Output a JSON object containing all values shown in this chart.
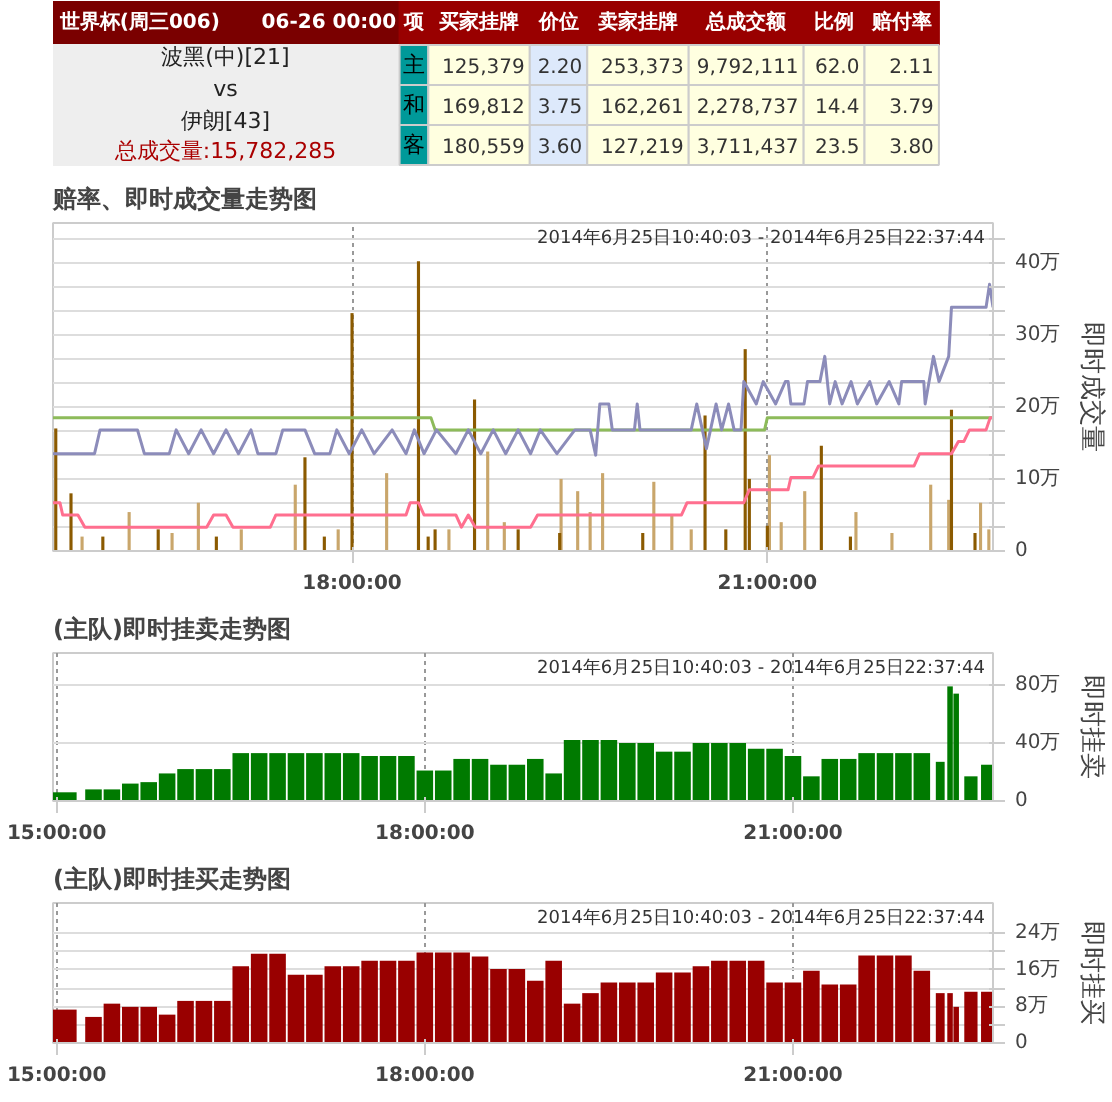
{
  "chart_data": [
    {
      "type": "other",
      "title": "世界杯(周三006)",
      "subtitle": "06-26 00:00",
      "annotations": [
        "波黑(中)[21]",
        "vs",
        "伊朗[43]",
        "总成交量:15,782,285",
        "项",
        "买家挂牌",
        "价位",
        "卖家挂牌",
        "总成交额",
        "比例",
        "赔付率",
        "主",
        "125,379",
        "2.20",
        "253,373",
        "9,792,111",
        "62.0",
        "2.11",
        "和",
        "169,812",
        "3.75",
        "162,261",
        "2,278,737",
        "14.4",
        "3.79",
        "客",
        "180,559",
        "3.60",
        "127,219",
        "3,711,437",
        "23.5",
        "3.80"
      ]
    },
    {
      "type": "bar",
      "title": "赔率、即时成交量走势图",
      "subtitle": "2014年6月25日10:40:03 - 2014年6月25日22:37:44",
      "ylabel": "即时成交量",
      "xlim": [
        15.84,
        22.63
      ],
      "ylim": [
        0,
        45.5
      ],
      "xticks": [
        {
          "value": 18,
          "label": "18:00:00"
        },
        {
          "value": 21,
          "label": "21:00:00"
        }
      ],
      "yticks": [
        0,
        {
          "value": 3.3,
          "label": null
        },
        {
          "value": 6.7,
          "label": null
        },
        {
          "value": 10,
          "label": "10万"
        },
        {
          "value": 13.3,
          "label": null
        },
        {
          "value": 16.7,
          "label": null
        },
        {
          "value": 20,
          "label": "20万"
        },
        {
          "value": 23.3,
          "label": null
        },
        {
          "value": 26.7,
          "label": null
        },
        {
          "value": 30,
          "label": "30万"
        },
        {
          "value": 33.3,
          "label": null
        },
        {
          "value": 36.7,
          "label": null
        },
        {
          "value": 40,
          "label": "40万"
        },
        {
          "value": 43.3,
          "label": null
        }
      ],
      "grid": true,
      "series": [
        {
          "color": "#c9a66b",
          "x": [
            16.05,
            16.39,
            16.7,
            16.89,
            17.2,
            17.59,
            17.9,
            18.25,
            18.7,
            18.98,
            19.1,
            19.51,
            19.63,
            19.72,
            19.81,
            20.18,
            20.31,
            20.45,
            21.015,
            21.1,
            21.27,
            21.64,
            21.9,
            22.18,
            22.31,
            22.54,
            22.6
          ],
          "values": [
            2,
            5.4,
            2.5,
            6.7,
            3,
            9.2,
            3,
            10.8,
            3,
            13.8,
            4,
            10,
            8.3,
            5.4,
            10.8,
            9.6,
            5,
            3,
            13.3,
            4,
            8.3,
            5.4,
            2.5,
            9.2,
            7.1,
            6.7,
            3
          ]
        },
        {
          "color": "#8b5a00",
          "x": [
            15.86,
            15.97,
            16.2,
            16.6,
            17.02,
            17.66,
            17.8,
            18.0,
            18.48,
            18.55,
            18.6,
            18.885,
            19.2,
            19.5,
            20.1,
            20.55,
            20.7,
            20.84,
            20.87,
            21.0,
            21.39,
            21.6,
            22.33,
            22.5
          ],
          "values": [
            17,
            8,
            2,
            3,
            2,
            13,
            2,
            33,
            40.2,
            2,
            3,
            21,
            3,
            2.5,
            2.5,
            18.8,
            3,
            28,
            10,
            3.5,
            14.6,
            2,
            19.6,
            2.5
          ]
        },
        {
          "type": "line",
          "color": "#8dbb5a",
          "x": [
            15.84,
            18.57,
            18.6,
            20.98,
            21.0,
            22.63
          ],
          "values": [
            18.5,
            18.5,
            16.8,
            16.8,
            18.5,
            18.5
          ]
        },
        {
          "type": "line",
          "color": "#8c8cba",
          "x": [
            15.84,
            16.14,
            16.18,
            16.45,
            16.5,
            16.68,
            16.73,
            16.82,
            16.91,
            17.0,
            17.09,
            17.18,
            17.27,
            17.32,
            17.45,
            17.5,
            17.66,
            17.73,
            17.84,
            17.89,
            17.98,
            18.07,
            18.16,
            18.29,
            18.39,
            18.45,
            18.52,
            18.61,
            18.75,
            18.84,
            18.93,
            19.02,
            19.11,
            19.2,
            19.29,
            19.36,
            19.48,
            19.61,
            19.72,
            19.76,
            19.79,
            19.855,
            19.88,
            20.04,
            20.06,
            20.08,
            20.45,
            20.49,
            20.56,
            20.63,
            20.67,
            20.72,
            20.76,
            20.81,
            20.83,
            20.92,
            20.97,
            21.06,
            21.13,
            21.15,
            21.17,
            21.265,
            21.29,
            21.38,
            21.415,
            21.45,
            21.49,
            21.54,
            21.605,
            21.65,
            21.74,
            21.79,
            21.88,
            21.95,
            21.97,
            22.13,
            22.14,
            22.2,
            22.24,
            22.31,
            22.33,
            22.58,
            22.605,
            22.63
          ],
          "values": [
            13.5,
            13.5,
            16.8,
            16.8,
            13.5,
            13.5,
            16.8,
            13.5,
            16.8,
            13.5,
            16.8,
            13.5,
            16.8,
            13.5,
            13.5,
            16.8,
            16.8,
            13.5,
            13.5,
            16.8,
            13.5,
            16.8,
            13.5,
            16.8,
            13.5,
            16.8,
            13.5,
            16.8,
            13.5,
            16.8,
            13.5,
            16.8,
            13.5,
            16.8,
            13.5,
            16.8,
            13.5,
            16.8,
            16.8,
            13.3,
            20.4,
            20.4,
            16.8,
            16.8,
            20.4,
            16.8,
            16.8,
            20.4,
            14.2,
            20.4,
            16.8,
            20.4,
            16.8,
            16.8,
            23.5,
            20.4,
            23.5,
            20.4,
            23.5,
            23.5,
            20.4,
            20.4,
            23.5,
            23.5,
            27,
            20.4,
            23.5,
            20.4,
            23.5,
            20.4,
            23.5,
            20.4,
            23.5,
            20.4,
            23.5,
            23.5,
            20.4,
            27,
            23.5,
            27,
            33.8,
            33.8,
            37,
            33.8
          ]
        },
        {
          "type": "line",
          "color": "#ff6f8f",
          "x": [
            15.84,
            15.89,
            15.91,
            16.02,
            16.07,
            16.95,
            17.0,
            17.09,
            17.14,
            17.41,
            17.45,
            18.39,
            18.42,
            18.48,
            18.52,
            18.75,
            18.79,
            18.84,
            18.89,
            19.29,
            19.34,
            20.38,
            20.42,
            20.83,
            20.87,
            21.15,
            21.17,
            21.33,
            21.37,
            22.06,
            22.1,
            22.33,
            22.38,
            22.42,
            22.46,
            22.58,
            22.61,
            22.63
          ],
          "values": [
            6.7,
            6.7,
            5,
            5,
            3.3,
            3.3,
            5,
            5,
            3.3,
            3.3,
            5,
            5,
            6.7,
            6.7,
            5,
            5,
            3.3,
            5,
            3.3,
            3.3,
            5,
            5,
            6.7,
            6.7,
            8.5,
            8.5,
            10.2,
            10.2,
            11.8,
            11.8,
            13.5,
            13.5,
            15.2,
            15.2,
            16.8,
            16.8,
            18.5,
            18.5
          ]
        }
      ]
    },
    {
      "type": "bar",
      "title": "(主队)即时挂卖走势图",
      "subtitle": "2014年6月25日10:40:03 - 2014年6月25日22:37:44",
      "ylabel": "即时挂卖",
      "xlim": [
        14.97,
        22.63
      ],
      "ylim": [
        0,
        102
      ],
      "xticks": [
        {
          "value": 15,
          "label": "15:00:00"
        },
        {
          "value": 18,
          "label": "18:00:00"
        },
        {
          "value": 21,
          "label": "21:00:00"
        }
      ],
      "yticks": [
        0,
        {
          "value": 40,
          "label": "40万"
        },
        {
          "value": 80,
          "label": "80万"
        }
      ],
      "grid": true,
      "series": [
        {
          "color": "#007a00",
          "x": [
            15.05,
            15.15,
            15.3,
            15.45,
            15.6,
            15.75,
            15.9,
            16.05,
            16.2,
            16.35,
            16.5,
            16.65,
            16.8,
            16.95,
            17.1,
            17.25,
            17.4,
            17.55,
            17.7,
            17.85,
            18.0,
            18.15,
            18.3,
            18.45,
            18.6,
            18.75,
            18.9,
            19.05,
            19.2,
            19.35,
            19.5,
            19.65,
            19.8,
            19.95,
            20.1,
            20.25,
            20.4,
            20.55,
            20.7,
            20.85,
            21.0,
            21.15,
            21.3,
            21.45,
            21.6,
            21.75,
            21.9,
            22.05,
            22.2,
            22.28,
            22.33,
            22.45,
            22.6
          ],
          "values": [
            6,
            null,
            8,
            8,
            12,
            13,
            19,
            22,
            22,
            22,
            33,
            33,
            33,
            33,
            33,
            33,
            33,
            31,
            31,
            31,
            21,
            21,
            29,
            29,
            25,
            25,
            29,
            19,
            42,
            42,
            42,
            40,
            40,
            34,
            34,
            40,
            40,
            40,
            36,
            36,
            31,
            17,
            29,
            29,
            33,
            33,
            33,
            33,
            27,
            79,
            74,
            17,
            25
          ]
        }
      ]
    },
    {
      "type": "bar",
      "title": "(主队)即时挂买走势图",
      "subtitle": "2014年6月25日10:40:03 - 2014年6月25日22:37:44",
      "ylabel": "即时挂买",
      "xlim": [
        14.97,
        22.63
      ],
      "ylim": [
        0,
        30.6
      ],
      "xticks": [
        {
          "value": 15,
          "label": "15:00:00"
        },
        {
          "value": 18,
          "label": "18:00:00"
        },
        {
          "value": 21,
          "label": "21:00:00"
        }
      ],
      "yticks": [
        0,
        {
          "value": 4,
          "label": null
        },
        {
          "value": 8,
          "label": "8万"
        },
        {
          "value": 12,
          "label": null
        },
        {
          "value": 16,
          "label": "16万"
        },
        {
          "value": 20,
          "label": null
        },
        {
          "value": 24,
          "label": "24万"
        }
      ],
      "grid": true,
      "series": [
        {
          "color": "#990000",
          "x": [
            15.05,
            15.15,
            15.3,
            15.45,
            15.6,
            15.75,
            15.9,
            16.05,
            16.2,
            16.35,
            16.5,
            16.65,
            16.8,
            16.95,
            17.1,
            17.25,
            17.4,
            17.55,
            17.7,
            17.85,
            18.0,
            18.15,
            18.3,
            18.45,
            18.6,
            18.75,
            18.9,
            19.05,
            19.2,
            19.35,
            19.5,
            19.65,
            19.8,
            19.95,
            20.1,
            20.25,
            20.4,
            20.55,
            20.7,
            20.85,
            21.0,
            21.15,
            21.3,
            21.45,
            21.6,
            21.75,
            21.9,
            22.05,
            22.2,
            22.28,
            22.33,
            22.45,
            22.6
          ],
          "values": [
            7.3,
            null,
            5.7,
            8.6,
            7.9,
            7.9,
            6.2,
            9.2,
            9.2,
            9.2,
            16.8,
            19.5,
            19.5,
            14.9,
            14.9,
            16.8,
            16.8,
            18,
            18,
            18,
            19.8,
            19.8,
            19.8,
            18.9,
            16.2,
            16.2,
            13.6,
            18,
            8.6,
            10.9,
            13.2,
            13.2,
            13.2,
            15.4,
            15.4,
            16.8,
            18,
            18,
            18,
            13.2,
            13.2,
            15.8,
            12.8,
            12.8,
            19.1,
            19.1,
            19.1,
            15.8,
            10.9,
            10.9,
            7.9,
            11.2,
            11.2
          ]
        }
      ]
    }
  ]
}
